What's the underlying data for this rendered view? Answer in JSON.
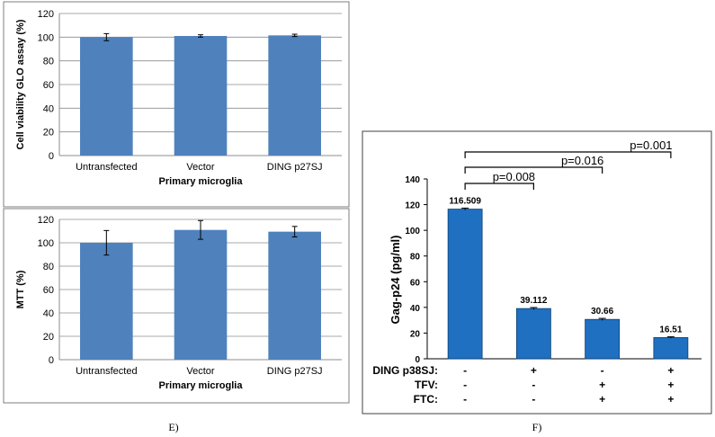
{
  "panels": {
    "left_label": "E)",
    "right_label": "F)"
  },
  "chart_data": [
    {
      "type": "bar",
      "title": "",
      "categories": [
        "Untransfected",
        "Vector",
        "DING p27SJ"
      ],
      "values": [
        100,
        101,
        101.5
      ],
      "errors": [
        3,
        1,
        1
      ],
      "xlabel": "Primary microglia",
      "ylabel": "Cell viability GLO assay (%)",
      "ylim": [
        0,
        120
      ],
      "yticks": [
        0,
        20,
        40,
        60,
        80,
        100,
        120
      ],
      "color": "#4f81bd",
      "grid": true
    },
    {
      "type": "bar",
      "title": "",
      "categories": [
        "Untransfected",
        "Vector",
        "DING p27SJ"
      ],
      "values": [
        100,
        111,
        109.5
      ],
      "errors": [
        10.5,
        8,
        4.5
      ],
      "xlabel": "Primary microglia",
      "ylabel": "MTT (%)",
      "ylim": [
        0,
        120
      ],
      "yticks": [
        0,
        20,
        40,
        60,
        80,
        100,
        120
      ],
      "color": "#4f81bd",
      "grid": true
    },
    {
      "type": "bar",
      "title": "",
      "categories": [
        "",
        "",
        "",
        ""
      ],
      "values": [
        116.509,
        39.112,
        30.66,
        16.51
      ],
      "value_labels": [
        "116.509",
        "39.112",
        "30.66",
        "16.51"
      ],
      "errors": [
        0.8,
        0.8,
        0.8,
        0.6
      ],
      "ylabel": "Gag-p24 (pg/ml)",
      "ylim": [
        0,
        140
      ],
      "yticks": [
        0,
        20,
        40,
        60,
        80,
        100,
        120,
        140
      ],
      "color": "#1f70c1",
      "grid": false,
      "conditions": [
        {
          "label": "DING p38SJ:",
          "marks": [
            "-",
            "+",
            "-",
            "+"
          ]
        },
        {
          "label": "TFV:",
          "marks": [
            "-",
            "-",
            "+",
            "+"
          ]
        },
        {
          "label": "FTC:",
          "marks": [
            "-",
            "-",
            "+",
            "+"
          ]
        }
      ],
      "comparisons": [
        {
          "from": 0,
          "to": 1,
          "label": "p=0.008"
        },
        {
          "from": 0,
          "to": 2,
          "label": "p=0.016"
        },
        {
          "from": 0,
          "to": 3,
          "label": "p=0.001"
        }
      ]
    }
  ]
}
